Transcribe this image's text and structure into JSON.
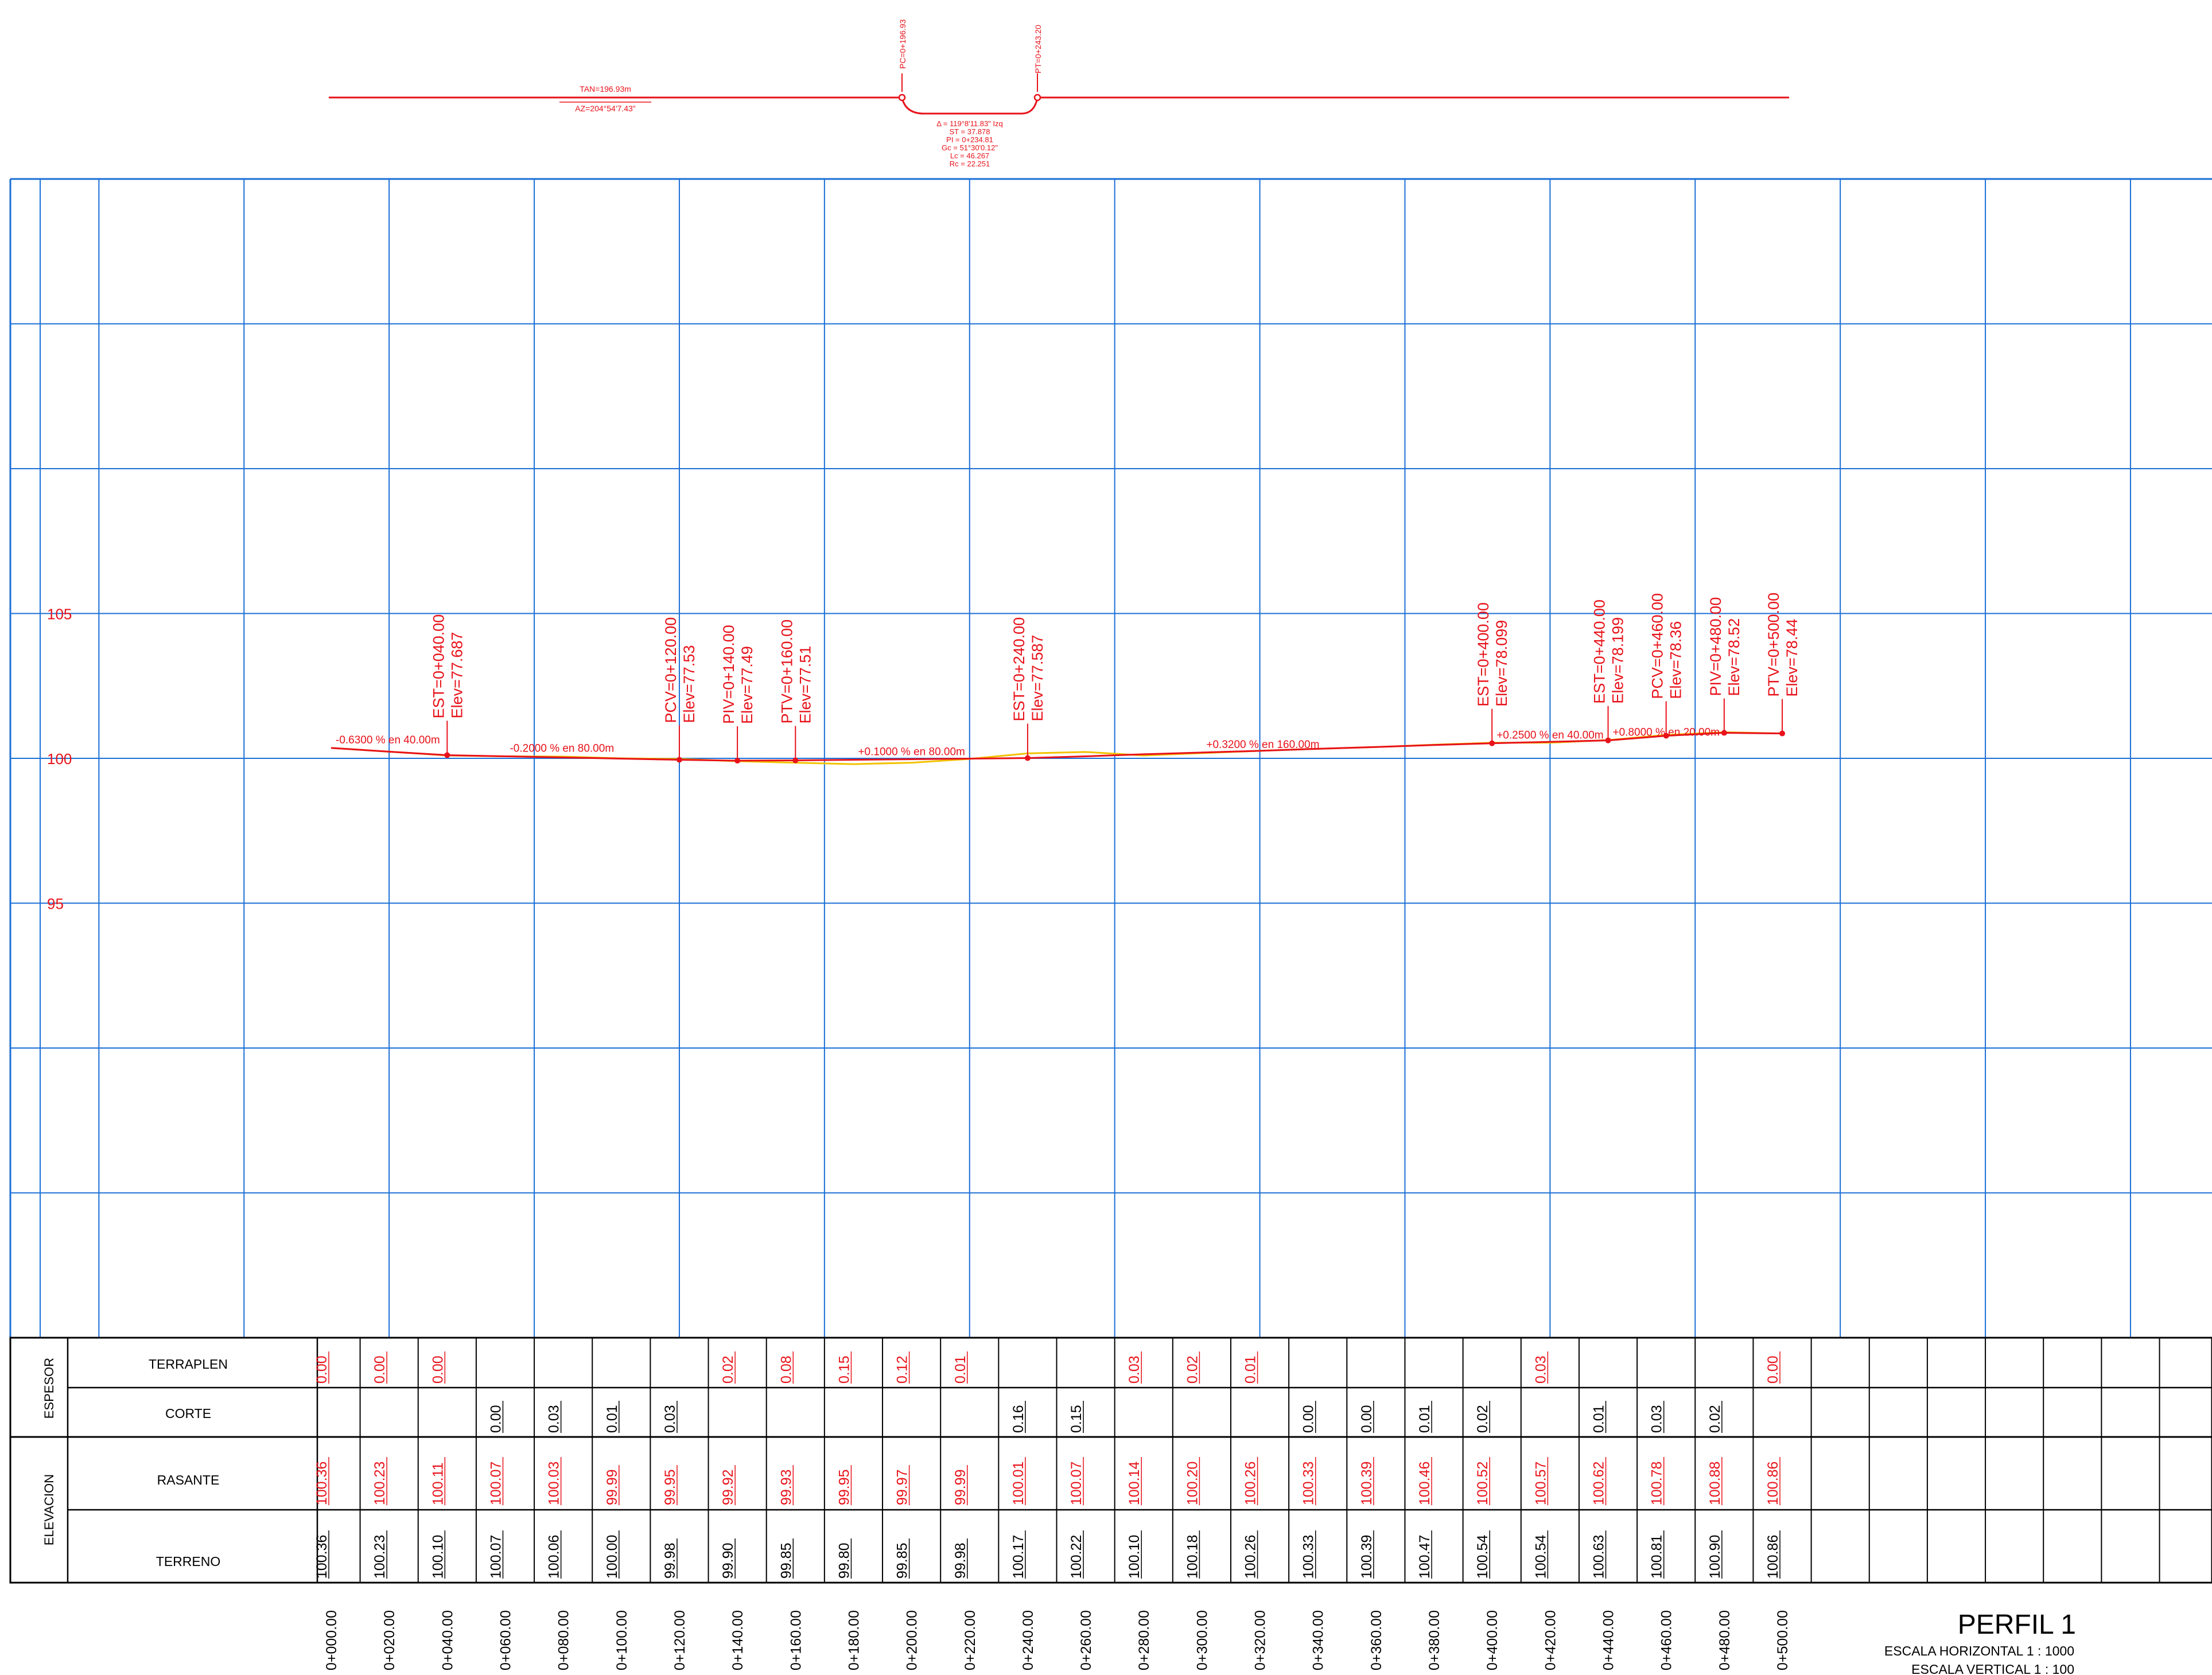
{
  "plan": {
    "tangent_length": "TAN=196.93m",
    "azimuth": "AZ=204°54'7.43\"",
    "pc_label": "PC=0+196.93",
    "pt_label": "PT=0+243.20",
    "curve_lines": [
      "Δ = 119°8'11.83\" Izq",
      "ST = 37.878",
      "PI = 0+234.81",
      "Gc = 51°30'0.12\"",
      "Lc = 46.267",
      "Rc = 22.251"
    ]
  },
  "profile": {
    "elevation_ticks": [
      {
        "value": 105,
        "label": "105"
      },
      {
        "value": 100,
        "label": "100"
      },
      {
        "value": 95,
        "label": "95"
      }
    ],
    "grade_labels": [
      {
        "station": 0,
        "text": "-0.6300 % en 40.00m"
      },
      {
        "station": 60,
        "text": "-0.2000 % en 80.00m"
      },
      {
        "station": 180,
        "text": "+0.1000 % en 80.00m"
      },
      {
        "station": 300,
        "text": "+0.3200 % en 160.00m"
      },
      {
        "station": 400,
        "text": "+0.2500 % en 40.00m"
      },
      {
        "station": 440,
        "text": "+0.8000 % en 20.00m"
      }
    ],
    "point_labels": [
      {
        "station": 40,
        "elevation": 100.11,
        "name": "EST=0+040.00",
        "elev": "Elev=77.687"
      },
      {
        "station": 120,
        "elevation": 99.95,
        "name": "PCV=0+120.00",
        "elev": "Elev=77.53"
      },
      {
        "station": 140,
        "elevation": 99.92,
        "name": "PIV=0+140.00",
        "elev": "Elev=77.49"
      },
      {
        "station": 160,
        "elevation": 99.93,
        "name": "PTV=0+160.00",
        "elev": "Elev=77.51"
      },
      {
        "station": 240,
        "elevation": 100.01,
        "name": "EST=0+240.00",
        "elev": "Elev=77.587"
      },
      {
        "station": 400,
        "elevation": 100.52,
        "name": "EST=0+400.00",
        "elev": "Elev=78.099"
      },
      {
        "station": 440,
        "elevation": 100.62,
        "name": "EST=0+440.00",
        "elev": "Elev=78.199"
      },
      {
        "station": 460,
        "elevation": 100.78,
        "name": "PCV=0+460.00",
        "elev": "Elev=78.36"
      },
      {
        "station": 480,
        "elevation": 100.88,
        "name": "PIV=0+480.00",
        "elev": "Elev=78.52"
      },
      {
        "station": 500,
        "elevation": 100.86,
        "name": "PTV=0+500.00",
        "elev": "Elev=78.44"
      }
    ]
  },
  "table": {
    "group_espesor": "ESPESOR",
    "group_elevacion": "ELEVACION",
    "row_terraplen": "TERRAPLEN",
    "row_corte": "CORTE",
    "row_rasante": "RASANTE",
    "row_terreno": "TERRENO",
    "stations": [
      0,
      20,
      40,
      60,
      80,
      100,
      120,
      140,
      160,
      180,
      200,
      220,
      240,
      260,
      280,
      300,
      320,
      340,
      360,
      380,
      400,
      420,
      440,
      460,
      480,
      500
    ],
    "station_labels": [
      "0+000.00",
      "0+020.00",
      "0+040.00",
      "0+060.00",
      "0+080.00",
      "0+100.00",
      "0+120.00",
      "0+140.00",
      "0+160.00",
      "0+180.00",
      "0+200.00",
      "0+220.00",
      "0+240.00",
      "0+260.00",
      "0+280.00",
      "0+300.00",
      "0+320.00",
      "0+340.00",
      "0+360.00",
      "0+380.00",
      "0+400.00",
      "0+420.00",
      "0+440.00",
      "0+460.00",
      "0+480.00",
      "0+500.00"
    ],
    "terraplen": [
      "0.00",
      "0.00",
      "0.00",
      "",
      "",
      "",
      "",
      "0.02",
      "0.08",
      "0.15",
      "0.12",
      "0.01",
      "",
      "",
      "0.03",
      "0.02",
      "0.01",
      "",
      "",
      "",
      "",
      "0.03",
      "",
      "",
      "",
      "0.00"
    ],
    "corte": [
      "",
      "",
      "",
      "0.00",
      "0.03",
      "0.01",
      "0.03",
      "",
      "",
      "",
      "",
      "",
      "0.16",
      "0.15",
      "",
      "",
      "",
      "0.00",
      "0.00",
      "0.01",
      "0.02",
      "",
      "0.01",
      "0.03",
      "0.02",
      ""
    ],
    "rasante": [
      "100.36",
      "100.23",
      "100.11",
      "100.07",
      "100.03",
      "99.99",
      "99.95",
      "99.92",
      "99.93",
      "99.95",
      "99.97",
      "99.99",
      "100.01",
      "100.07",
      "100.14",
      "100.20",
      "100.26",
      "100.33",
      "100.39",
      "100.46",
      "100.52",
      "100.57",
      "100.62",
      "100.78",
      "100.88",
      "100.86"
    ],
    "terreno": [
      "100.36",
      "100.23",
      "100.10",
      "100.07",
      "100.06",
      "100.00",
      "99.98",
      "99.90",
      "99.85",
      "99.80",
      "99.85",
      "99.98",
      "100.17",
      "100.22",
      "100.10",
      "100.18",
      "100.26",
      "100.33",
      "100.39",
      "100.47",
      "100.54",
      "100.54",
      "100.63",
      "100.81",
      "100.90",
      "100.86"
    ]
  },
  "title_block": {
    "title": "PERFIL 1",
    "scale_h": "ESCALA HORIZONTAL 1 : 1000",
    "scale_v": "ESCALA VERTICAL 1 : 100"
  },
  "colors": {
    "grid": "#1a6fd6",
    "design": "#e8121a",
    "terrain": "#f2c200",
    "ink": "#000000"
  }
}
